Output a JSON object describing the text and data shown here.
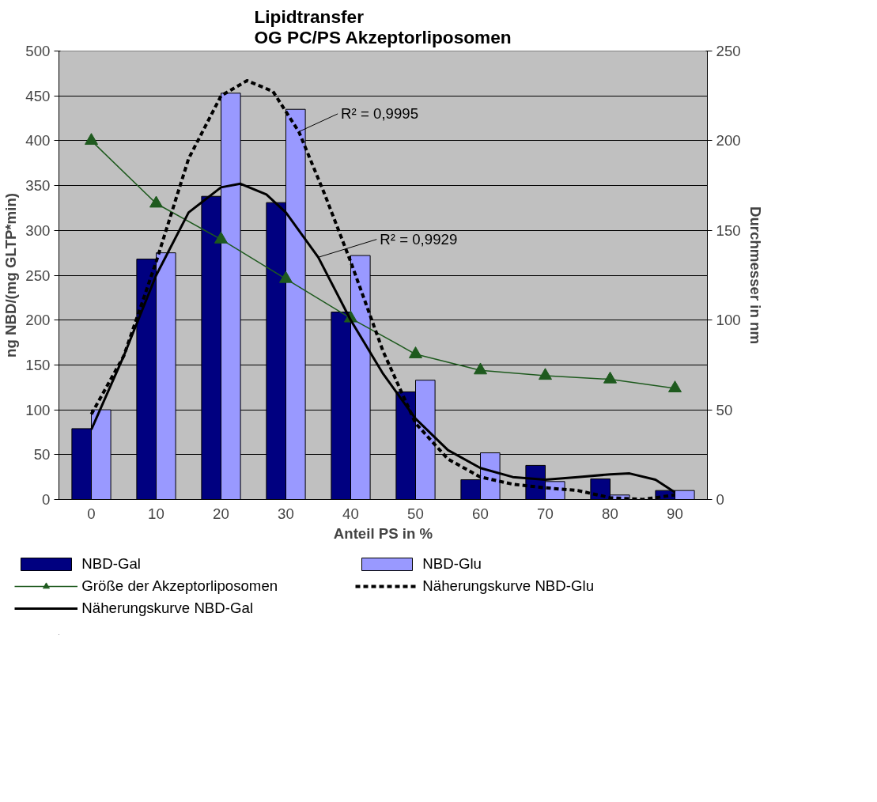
{
  "chart_data": {
    "type": "bar",
    "title": "Lipidtransfer\nOG PC/PS Akzeptorliposomen",
    "xlabel": "Anteil PS in %",
    "ylabel": "ng NBD/(mg GLTP*min)",
    "y2label": "Durchmesser in nm",
    "x": [
      0,
      10,
      20,
      30,
      40,
      50,
      60,
      70,
      80,
      90
    ],
    "xlim": [
      -5,
      95
    ],
    "xticks": [
      0,
      10,
      20,
      30,
      40,
      50,
      60,
      70,
      80,
      90
    ],
    "ylim": [
      0,
      500
    ],
    "yticks": [
      0,
      50,
      100,
      150,
      200,
      250,
      300,
      350,
      400,
      450,
      500
    ],
    "y2lim": [
      0,
      250
    ],
    "y2ticks": [
      0,
      50,
      100,
      150,
      200,
      250
    ],
    "grid": "y",
    "legend": "bottom",
    "series": [
      {
        "name": "NBD-Gal",
        "color": "#000080",
        "values": [
          79,
          268,
          338,
          331,
          209,
          120,
          22,
          38,
          23,
          10
        ]
      },
      {
        "name": "NBD-Glu",
        "color": "#9999ff",
        "values": [
          100,
          275,
          453,
          435,
          272,
          133,
          52,
          20,
          5,
          10
        ]
      },
      {
        "name": "Größe der Akzeptorliposomen",
        "type": "line",
        "axis": "y2",
        "color": "#1e5a1e",
        "marker": "triangle",
        "line_style": "solid",
        "values": [
          200,
          165,
          145,
          123,
          101,
          81,
          72,
          69,
          67,
          62
        ]
      },
      {
        "name": "Näherungskurve NBD-Glu",
        "type": "line",
        "color": "#000000",
        "line_style": "dashed",
        "marker": "none",
        "x": [
          0,
          5,
          10,
          15,
          20,
          24,
          28,
          32,
          36,
          40,
          45,
          50,
          55,
          60,
          65,
          70,
          75,
          80,
          85,
          90
        ],
        "values": [
          95,
          160,
          265,
          380,
          450,
          467,
          455,
          410,
          340,
          265,
          165,
          85,
          45,
          25,
          17,
          13,
          10,
          2,
          0,
          5
        ]
      },
      {
        "name": "Näherungskurve NBD-Gal",
        "type": "line",
        "color": "#000000",
        "line_style": "solid",
        "marker": "none",
        "x": [
          0,
          5,
          10,
          15,
          20,
          23,
          27,
          30,
          35,
          40,
          45,
          50,
          55,
          60,
          65,
          70,
          75,
          80,
          83,
          87,
          90
        ],
        "values": [
          78,
          160,
          250,
          320,
          348,
          352,
          340,
          320,
          270,
          200,
          140,
          90,
          55,
          35,
          25,
          22,
          25,
          28,
          29,
          22,
          8
        ]
      }
    ],
    "annotations": [
      {
        "text": "R² = 0,9995",
        "x": 32,
        "y": 410
      },
      {
        "text": "R² = 0,9929",
        "x": 35,
        "y": 270
      }
    ]
  }
}
